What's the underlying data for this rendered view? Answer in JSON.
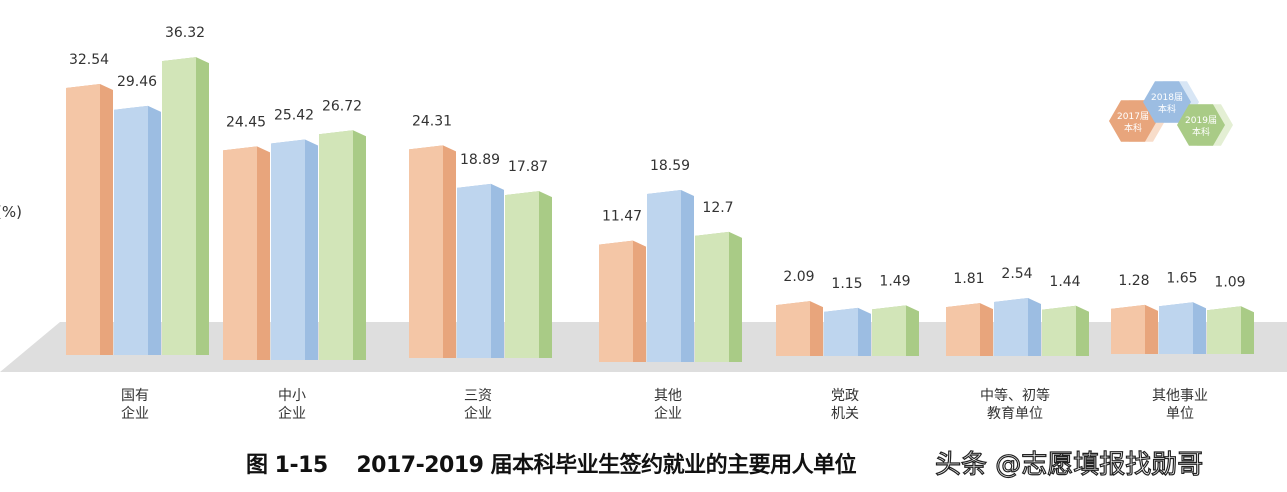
{
  "chart_data": {
    "type": "bar",
    "title": "图 1-15    2017-2019 届本科毕业生签约就业的主要用人单位",
    "ylabel": "(%)",
    "categories": [
      [
        "国有",
        "企业"
      ],
      [
        "中小",
        "企业"
      ],
      [
        "三资",
        "企业"
      ],
      [
        "其他",
        "企业"
      ],
      [
        "党政",
        "机关"
      ],
      [
        "中等、初等",
        "教育单位"
      ],
      [
        "其他事业",
        "单位"
      ]
    ],
    "series": [
      {
        "name": "2017届本科",
        "legend": [
          "2017届",
          "本科"
        ],
        "values": [
          32.54,
          24.45,
          24.31,
          11.47,
          2.09,
          1.81,
          1.28
        ],
        "front": "#f4c6a6",
        "side": "#e8a57c"
      },
      {
        "name": "2018届本科",
        "legend": [
          "2018届",
          "本科"
        ],
        "values": [
          29.46,
          25.42,
          18.89,
          18.59,
          1.15,
          2.54,
          1.65
        ],
        "front": "#bed5ee",
        "side": "#9cbde2"
      },
      {
        "name": "2019届本科",
        "legend": [
          "2019届",
          "本科"
        ],
        "values": [
          36.32,
          26.72,
          17.87,
          12.7,
          1.49,
          1.44,
          1.09
        ],
        "front": "#d2e5b8",
        "side": "#a9cb86"
      }
    ],
    "ylim": [
      0,
      40
    ],
    "legend_position": "top-right"
  },
  "watermark": "头条 @志愿填报找勋哥"
}
